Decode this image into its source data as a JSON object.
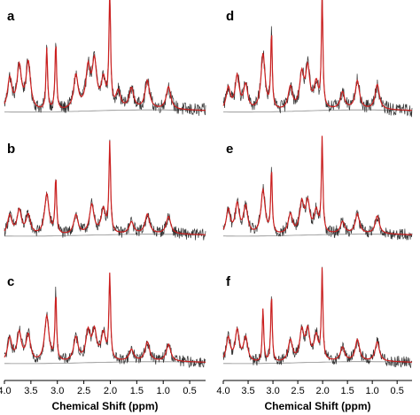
{
  "figure": {
    "xlabel": "Chemical Shift (ppm)",
    "x_ticks": [
      "4.0",
      "3.5",
      "3.0",
      "2.5",
      "2.0",
      "1.5",
      "1.0",
      "0.5"
    ],
    "colors": {
      "raw": "#333333",
      "fit": "#cc1f1f",
      "baseline": "#8c8c8c",
      "axis": "#000000"
    }
  },
  "chart_data": [
    {
      "type": "line",
      "panel": "a",
      "xlabel": "",
      "xlim": [
        4.0,
        0.2
      ],
      "x_reversed": true,
      "peaks_ppm_height": [
        [
          3.9,
          0.28
        ],
        [
          3.72,
          0.38
        ],
        [
          3.55,
          0.42
        ],
        [
          3.2,
          0.55
        ],
        [
          3.03,
          0.6
        ],
        [
          2.65,
          0.3
        ],
        [
          2.42,
          0.35
        ],
        [
          2.3,
          0.4
        ],
        [
          2.13,
          0.25
        ],
        [
          2.01,
          1.0
        ],
        [
          1.85,
          0.15
        ],
        [
          1.6,
          0.18
        ],
        [
          1.3,
          0.25
        ],
        [
          0.9,
          0.2
        ]
      ]
    },
    {
      "type": "line",
      "panel": "b",
      "xlabel": "",
      "xlim": [
        4.0,
        0.2
      ],
      "x_reversed": true,
      "peaks_ppm_height": [
        [
          3.9,
          0.2
        ],
        [
          3.72,
          0.25
        ],
        [
          3.55,
          0.2
        ],
        [
          3.2,
          0.42
        ],
        [
          3.03,
          0.58
        ],
        [
          2.65,
          0.2
        ],
        [
          2.35,
          0.3
        ],
        [
          2.13,
          0.25
        ],
        [
          2.01,
          0.92
        ],
        [
          1.6,
          0.12
        ],
        [
          1.3,
          0.2
        ],
        [
          0.9,
          0.18
        ]
      ]
    },
    {
      "type": "line",
      "panel": "c",
      "xlabel": "Chemical Shift (ppm)",
      "xlim": [
        4.0,
        0.2
      ],
      "x_reversed": true,
      "peaks_ppm_height": [
        [
          3.9,
          0.25
        ],
        [
          3.72,
          0.3
        ],
        [
          3.55,
          0.28
        ],
        [
          3.2,
          0.48
        ],
        [
          3.03,
          0.7
        ],
        [
          2.65,
          0.25
        ],
        [
          2.42,
          0.3
        ],
        [
          2.3,
          0.3
        ],
        [
          2.13,
          0.28
        ],
        [
          2.01,
          0.88
        ],
        [
          1.6,
          0.12
        ],
        [
          1.3,
          0.2
        ],
        [
          0.9,
          0.18
        ]
      ]
    },
    {
      "type": "line",
      "panel": "d",
      "xlabel": "",
      "xlim": [
        4.0,
        0.2
      ],
      "x_reversed": true,
      "peaks_ppm_height": [
        [
          3.9,
          0.2
        ],
        [
          3.72,
          0.3
        ],
        [
          3.55,
          0.22
        ],
        [
          3.2,
          0.5
        ],
        [
          3.03,
          0.68
        ],
        [
          2.65,
          0.2
        ],
        [
          2.42,
          0.3
        ],
        [
          2.3,
          0.35
        ],
        [
          2.13,
          0.22
        ],
        [
          2.01,
          1.0
        ],
        [
          1.6,
          0.15
        ],
        [
          1.3,
          0.25
        ],
        [
          0.9,
          0.22
        ]
      ]
    },
    {
      "type": "line",
      "panel": "e",
      "xlabel": "",
      "xlim": [
        4.0,
        0.2
      ],
      "x_reversed": true,
      "peaks_ppm_height": [
        [
          3.9,
          0.25
        ],
        [
          3.72,
          0.3
        ],
        [
          3.55,
          0.28
        ],
        [
          3.2,
          0.45
        ],
        [
          3.03,
          0.65
        ],
        [
          2.65,
          0.2
        ],
        [
          2.42,
          0.3
        ],
        [
          2.3,
          0.3
        ],
        [
          2.13,
          0.22
        ],
        [
          2.01,
          0.95
        ],
        [
          1.6,
          0.12
        ],
        [
          1.3,
          0.2
        ],
        [
          0.9,
          0.18
        ]
      ]
    },
    {
      "type": "line",
      "panel": "f",
      "xlabel": "Chemical Shift (ppm)",
      "xlim": [
        4.0,
        0.2
      ],
      "x_reversed": true,
      "peaks_ppm_height": [
        [
          3.9,
          0.25
        ],
        [
          3.72,
          0.32
        ],
        [
          3.55,
          0.25
        ],
        [
          3.2,
          0.55
        ],
        [
          3.03,
          0.7
        ],
        [
          2.65,
          0.22
        ],
        [
          2.42,
          0.3
        ],
        [
          2.3,
          0.3
        ],
        [
          2.13,
          0.25
        ],
        [
          2.01,
          0.92
        ],
        [
          1.6,
          0.14
        ],
        [
          1.3,
          0.22
        ],
        [
          0.9,
          0.2
        ]
      ]
    }
  ]
}
